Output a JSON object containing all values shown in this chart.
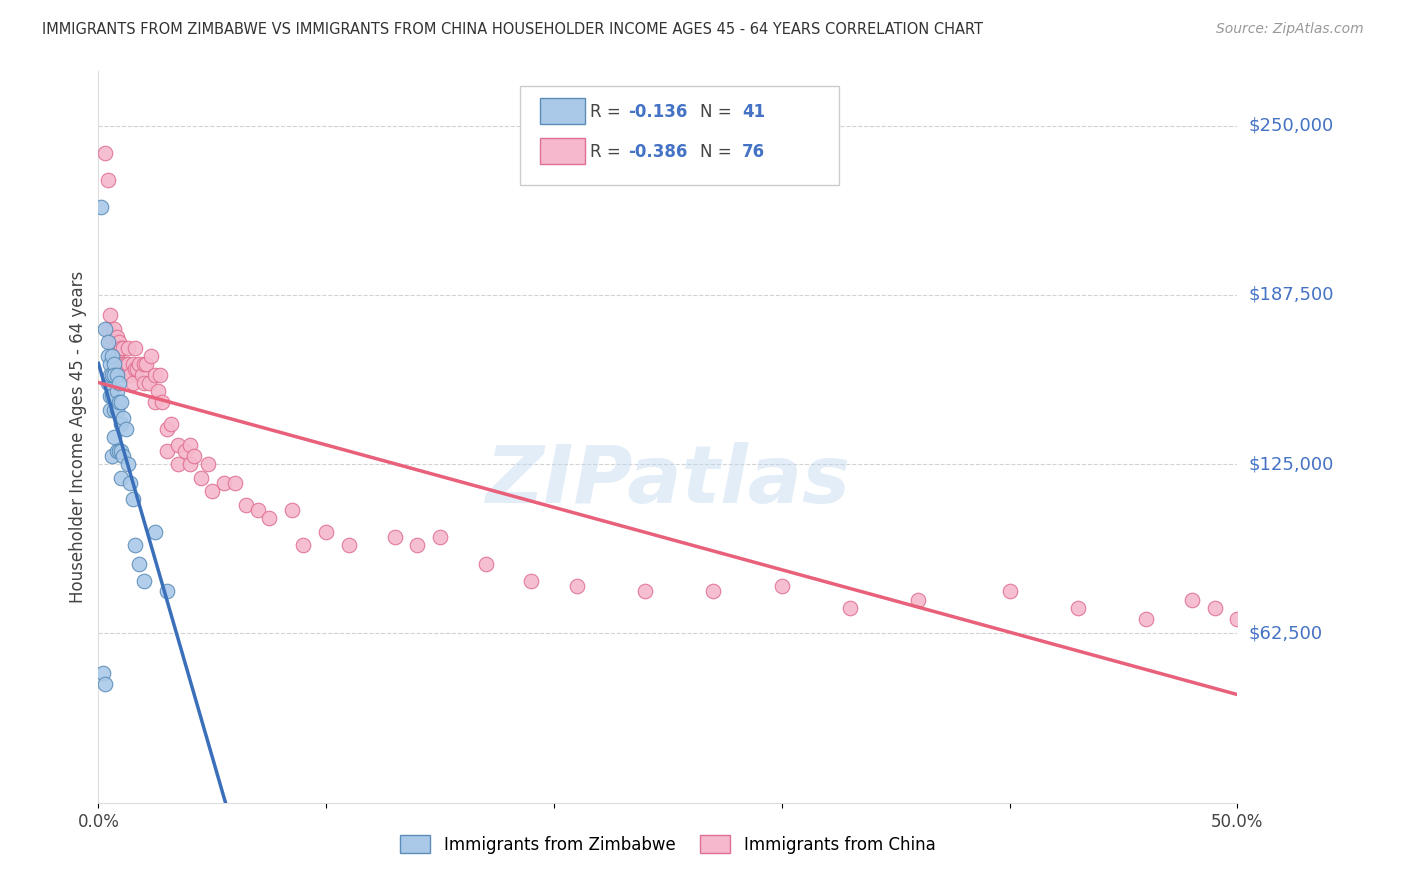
{
  "title": "IMMIGRANTS FROM ZIMBABWE VS IMMIGRANTS FROM CHINA HOUSEHOLDER INCOME AGES 45 - 64 YEARS CORRELATION CHART",
  "source": "Source: ZipAtlas.com",
  "ylabel": "Householder Income Ages 45 - 64 years",
  "xlim": [
    0.0,
    0.5
  ],
  "ylim": [
    0,
    270000
  ],
  "yticks": [
    62500,
    125000,
    187500,
    250000
  ],
  "ytick_labels": [
    "$62,500",
    "$125,000",
    "$187,500",
    "$250,000"
  ],
  "xtick_positions": [
    0.0,
    0.1,
    0.2,
    0.3,
    0.4,
    0.5
  ],
  "xtick_labels": [
    "0.0%",
    "",
    "",
    "",
    "",
    "50.0%"
  ],
  "legend_R1_val": "-0.136",
  "legend_N1_val": "41",
  "legend_R2_val": "-0.386",
  "legend_N2_val": "76",
  "zim_color": "#aac9e8",
  "china_color": "#f5b8cc",
  "zim_edge_color": "#5b8db8",
  "china_edge_color": "#e07090",
  "zim_line_color": "#3a6fba",
  "china_line_color": "#e8607a",
  "zim_dash_color": "#aaccee",
  "watermark": "ZIPatlas",
  "background_color": "#ffffff",
  "grid_color": "#c8c8c8",
  "zim_scatter_x": [
    0.001,
    0.002,
    0.003,
    0.003,
    0.004,
    0.004,
    0.004,
    0.005,
    0.005,
    0.005,
    0.005,
    0.006,
    0.006,
    0.006,
    0.006,
    0.007,
    0.007,
    0.007,
    0.007,
    0.008,
    0.008,
    0.008,
    0.008,
    0.009,
    0.009,
    0.009,
    0.01,
    0.01,
    0.01,
    0.01,
    0.011,
    0.011,
    0.012,
    0.013,
    0.014,
    0.015,
    0.016,
    0.018,
    0.02,
    0.025,
    0.03
  ],
  "zim_scatter_y": [
    220000,
    48000,
    44000,
    175000,
    170000,
    165000,
    155000,
    162000,
    158000,
    150000,
    145000,
    165000,
    158000,
    150000,
    128000,
    162000,
    158000,
    145000,
    135000,
    158000,
    152000,
    145000,
    130000,
    155000,
    148000,
    130000,
    148000,
    140000,
    130000,
    120000,
    142000,
    128000,
    138000,
    125000,
    118000,
    112000,
    95000,
    88000,
    82000,
    100000,
    78000
  ],
  "china_scatter_x": [
    0.003,
    0.004,
    0.004,
    0.005,
    0.005,
    0.006,
    0.007,
    0.007,
    0.008,
    0.008,
    0.009,
    0.009,
    0.01,
    0.01,
    0.011,
    0.011,
    0.012,
    0.012,
    0.013,
    0.013,
    0.014,
    0.015,
    0.015,
    0.016,
    0.016,
    0.017,
    0.018,
    0.019,
    0.02,
    0.02,
    0.021,
    0.022,
    0.023,
    0.025,
    0.025,
    0.026,
    0.027,
    0.028,
    0.03,
    0.03,
    0.032,
    0.035,
    0.035,
    0.038,
    0.04,
    0.04,
    0.042,
    0.045,
    0.048,
    0.05,
    0.055,
    0.06,
    0.065,
    0.07,
    0.075,
    0.085,
    0.09,
    0.1,
    0.11,
    0.13,
    0.14,
    0.15,
    0.17,
    0.19,
    0.21,
    0.24,
    0.27,
    0.3,
    0.33,
    0.36,
    0.4,
    0.43,
    0.46,
    0.48,
    0.49,
    0.5
  ],
  "china_scatter_y": [
    240000,
    230000,
    175000,
    180000,
    170000,
    172000,
    175000,
    168000,
    172000,
    165000,
    170000,
    162000,
    168000,
    160000,
    168000,
    162000,
    162000,
    158000,
    168000,
    162000,
    158000,
    162000,
    155000,
    168000,
    160000,
    160000,
    162000,
    158000,
    162000,
    155000,
    162000,
    155000,
    165000,
    158000,
    148000,
    152000,
    158000,
    148000,
    138000,
    130000,
    140000,
    132000,
    125000,
    130000,
    125000,
    132000,
    128000,
    120000,
    125000,
    115000,
    118000,
    118000,
    110000,
    108000,
    105000,
    108000,
    95000,
    100000,
    95000,
    98000,
    95000,
    98000,
    88000,
    82000,
    80000,
    78000,
    78000,
    80000,
    72000,
    75000,
    78000,
    72000,
    68000,
    75000,
    72000,
    68000
  ]
}
